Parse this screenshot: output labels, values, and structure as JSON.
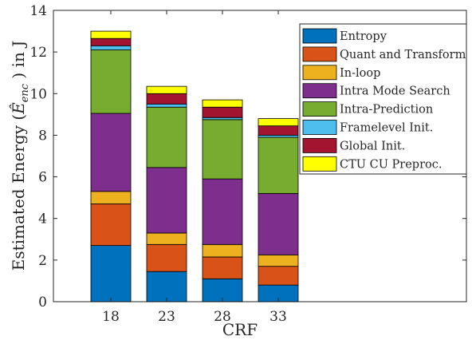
{
  "chart_data": {
    "type": "bar",
    "stacked": true,
    "categories": [
      "18",
      "23",
      "28",
      "33"
    ],
    "xlabel": "CRF",
    "ylabel_prefix": "Estimated Energy (",
    "ylabel_symbol": "Ê",
    "ylabel_subscript": "enc",
    "ylabel_suffix": " ) in J",
    "ylim": [
      0,
      14
    ],
    "yticks": [
      0,
      2,
      4,
      6,
      8,
      10,
      12,
      14
    ],
    "grid": false,
    "legend_position": "top-right",
    "series": [
      {
        "name": "Entropy",
        "color": "#0072BD",
        "values": [
          2.7,
          1.45,
          1.1,
          0.8
        ]
      },
      {
        "name": "Quant and Transform",
        "color": "#D95319",
        "values": [
          2.0,
          1.3,
          1.05,
          0.9
        ]
      },
      {
        "name": "In-loop",
        "color": "#EDB120",
        "values": [
          0.6,
          0.55,
          0.6,
          0.55
        ]
      },
      {
        "name": "Intra Mode Search",
        "color": "#7E2F8E",
        "values": [
          3.75,
          3.15,
          3.15,
          2.95
        ]
      },
      {
        "name": "Intra-Prediction",
        "color": "#77AC30",
        "values": [
          3.05,
          2.9,
          2.85,
          2.7
        ]
      },
      {
        "name": "Framelevel Init.",
        "color": "#4DBEEE",
        "values": [
          0.2,
          0.15,
          0.1,
          0.1
        ]
      },
      {
        "name": "Global Init.",
        "color": "#A2142F",
        "values": [
          0.35,
          0.5,
          0.5,
          0.45
        ]
      },
      {
        "name": "CTU CU Preproc.",
        "color": "#FFFF00",
        "values": [
          0.35,
          0.35,
          0.35,
          0.35
        ]
      }
    ]
  }
}
